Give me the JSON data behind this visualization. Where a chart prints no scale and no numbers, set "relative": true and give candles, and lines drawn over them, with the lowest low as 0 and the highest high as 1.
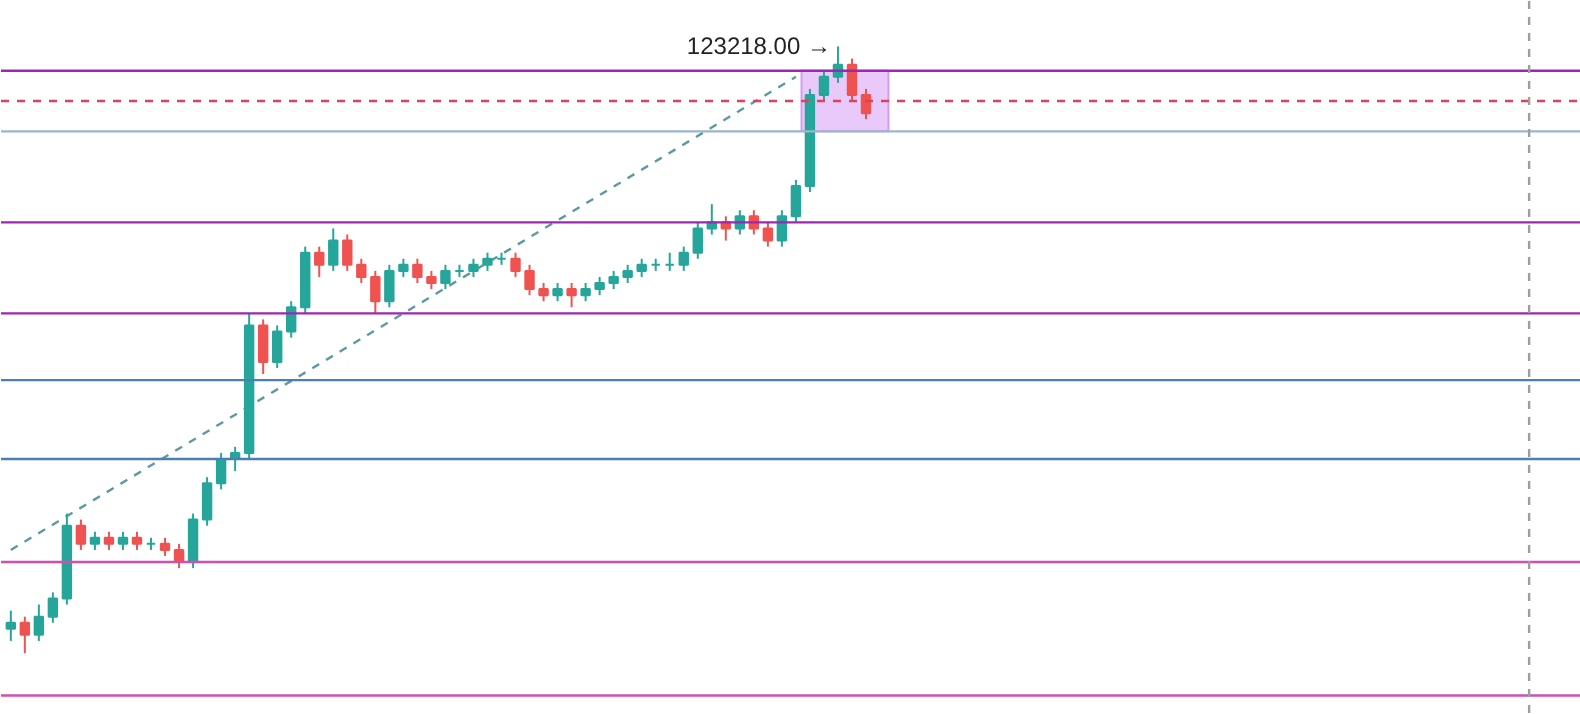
{
  "chart_data": {
    "type": "candlestick",
    "relative": true,
    "tick_labels": false,
    "grid": false,
    "categories": [
      null,
      null,
      null,
      null,
      null,
      null,
      null,
      null,
      null,
      null,
      null,
      null,
      null,
      null,
      null,
      null,
      null,
      null,
      null,
      null,
      null,
      null,
      null,
      null,
      null,
      null,
      null,
      null,
      null,
      null,
      null,
      null,
      null,
      null,
      null,
      null,
      null,
      null,
      null,
      null,
      null,
      null,
      null,
      null,
      null,
      null,
      null,
      null,
      null,
      null,
      null,
      null,
      null,
      null,
      null,
      null,
      null,
      null,
      null,
      null,
      null,
      null
    ],
    "colors": [
      "#26a69a",
      "#ef5350",
      "#26a69a",
      "#26a69a",
      "#26a69a",
      "#ef5350",
      "#26a69a",
      "#ef5350",
      "#26a69a",
      "#ef5350",
      "#26a69a",
      "#ef5350",
      "#ef5350",
      "#26a69a",
      "#26a69a",
      "#26a69a",
      "#26a69a",
      "#26a69a",
      "#ef5350",
      "#26a69a",
      "#26a69a",
      "#26a69a",
      "#ef5350",
      "#26a69a",
      "#ef5350",
      "#ef5350",
      "#ef5350",
      "#26a69a",
      "#26a69a",
      "#ef5350",
      "#ef5350",
      "#26a69a",
      "#26a69a",
      "#26a69a",
      "#26a69a",
      "#26a69a",
      "#ef5350",
      "#ef5350",
      "#ef5350",
      "#26a69a",
      "#ef5350",
      "#26a69a",
      "#26a69a",
      "#26a69a",
      "#26a69a",
      "#26a69a",
      "#26a69a",
      "#26a69a",
      "#26a69a",
      "#26a69a",
      "#26a69a",
      "#ef5350",
      "#26a69a",
      "#ef5350",
      "#ef5350",
      "#26a69a",
      "#26a69a",
      "#26a69a",
      "#26a69a",
      "#26a69a",
      "#ef5350",
      "#ef5350"
    ],
    "ohlc": [
      [
        0.04,
        0.07,
        0.02,
        0.05
      ],
      [
        0.05,
        0.06,
        0,
        0.03
      ],
      [
        0.03,
        0.08,
        0.02,
        0.06
      ],
      [
        0.06,
        0.1,
        0.05,
        0.09
      ],
      [
        0.09,
        0.23,
        0.08,
        0.21
      ],
      [
        0.21,
        0.22,
        0.17,
        0.18
      ],
      [
        0.18,
        0.2,
        0.17,
        0.19
      ],
      [
        0.19,
        0.2,
        0.17,
        0.18
      ],
      [
        0.18,
        0.2,
        0.17,
        0.19
      ],
      [
        0.19,
        0.2,
        0.17,
        0.18
      ],
      [
        0.18,
        0.19,
        0.17,
        0.18
      ],
      [
        0.18,
        0.19,
        0.16,
        0.17
      ],
      [
        0.17,
        0.18,
        0.14,
        0.15
      ],
      [
        0.15,
        0.23,
        0.14,
        0.22
      ],
      [
        0.22,
        0.29,
        0.21,
        0.28
      ],
      [
        0.28,
        0.33,
        0.27,
        0.32
      ],
      [
        0.32,
        0.34,
        0.3,
        0.33
      ],
      [
        0.33,
        0.56,
        0.32,
        0.54
      ],
      [
        0.54,
        0.55,
        0.46,
        0.48
      ],
      [
        0.48,
        0.54,
        0.47,
        0.53
      ],
      [
        0.53,
        0.58,
        0.52,
        0.57
      ],
      [
        0.57,
        0.67,
        0.56,
        0.66
      ],
      [
        0.66,
        0.67,
        0.62,
        0.64
      ],
      [
        0.64,
        0.7,
        0.63,
        0.68
      ],
      [
        0.68,
        0.69,
        0.63,
        0.64
      ],
      [
        0.64,
        0.65,
        0.61,
        0.62
      ],
      [
        0.62,
        0.63,
        0.56,
        0.58
      ],
      [
        0.58,
        0.64,
        0.57,
        0.63
      ],
      [
        0.63,
        0.65,
        0.62,
        0.64
      ],
      [
        0.64,
        0.65,
        0.61,
        0.62
      ],
      [
        0.62,
        0.63,
        0.6,
        0.61
      ],
      [
        0.61,
        0.64,
        0.6,
        0.63
      ],
      [
        0.63,
        0.64,
        0.62,
        0.63
      ],
      [
        0.63,
        0.65,
        0.62,
        0.64
      ],
      [
        0.64,
        0.66,
        0.63,
        0.65
      ],
      [
        0.65,
        0.66,
        0.64,
        0.65
      ],
      [
        0.65,
        0.66,
        0.62,
        0.63
      ],
      [
        0.63,
        0.64,
        0.59,
        0.6
      ],
      [
        0.6,
        0.61,
        0.58,
        0.59
      ],
      [
        0.59,
        0.61,
        0.58,
        0.6
      ],
      [
        0.6,
        0.61,
        0.57,
        0.59
      ],
      [
        0.59,
        0.61,
        0.58,
        0.6
      ],
      [
        0.6,
        0.62,
        0.59,
        0.61
      ],
      [
        0.61,
        0.63,
        0.6,
        0.62
      ],
      [
        0.62,
        0.64,
        0.61,
        0.63
      ],
      [
        0.63,
        0.65,
        0.62,
        0.64
      ],
      [
        0.64,
        0.65,
        0.63,
        0.64
      ],
      [
        0.64,
        0.66,
        0.63,
        0.64
      ],
      [
        0.64,
        0.67,
        0.63,
        0.66
      ],
      [
        0.66,
        0.71,
        0.65,
        0.7
      ],
      [
        0.7,
        0.74,
        0.69,
        0.71
      ],
      [
        0.71,
        0.72,
        0.68,
        0.7
      ],
      [
        0.7,
        0.73,
        0.69,
        0.72
      ],
      [
        0.72,
        0.73,
        0.69,
        0.7
      ],
      [
        0.7,
        0.71,
        0.67,
        0.68
      ],
      [
        0.68,
        0.73,
        0.67,
        0.72
      ],
      [
        0.72,
        0.78,
        0.71,
        0.77
      ],
      [
        0.77,
        0.93,
        0.76,
        0.92
      ],
      [
        0.92,
        0.96,
        0.91,
        0.95
      ],
      [
        0.95,
        1,
        0.94,
        0.97
      ],
      [
        0.97,
        0.98,
        0.91,
        0.92
      ],
      [
        0.92,
        0.93,
        0.88,
        0.89
      ]
    ],
    "series": [
      {
        "type": "line",
        "values": [
          0.17,
          null,
          null,
          null,
          null,
          null,
          null,
          null,
          null,
          null,
          null,
          null,
          null,
          null,
          null,
          null,
          null,
          null,
          null,
          null,
          null,
          null,
          null,
          null,
          null,
          null,
          null,
          null,
          null,
          null,
          null,
          null,
          null,
          null,
          null,
          null,
          null,
          null,
          null,
          null,
          null,
          null,
          null,
          null,
          null,
          null,
          null,
          null,
          null,
          null,
          null,
          null,
          null,
          null,
          null,
          null,
          0.95,
          null,
          null,
          null,
          null,
          null
        ],
        "color": "#5c9aa0",
        "line_style": "dashed"
      }
    ],
    "ref_lines": [
      {
        "axis": "y",
        "value": 0.96,
        "color": "#9c27b0"
      },
      {
        "axis": "y",
        "value": 0.91,
        "color": "#e0405a",
        "line_style": "dashed"
      },
      {
        "axis": "y",
        "value": 0.86,
        "color": "#9db4cf"
      },
      {
        "axis": "y",
        "value": 0.71,
        "color": "#9c27b0"
      },
      {
        "axis": "y",
        "value": 0.56,
        "color": "#9c27b0"
      },
      {
        "axis": "y",
        "value": 0.45,
        "color": "#4a7fb5"
      },
      {
        "axis": "y",
        "value": 0.32,
        "color": "#4a7fb5"
      },
      {
        "axis": "y",
        "value": 0.15,
        "color": "#d04fb0"
      },
      {
        "axis": "y",
        "value": -0.07,
        "color": "#d04fb0"
      }
    ],
    "bands": [
      {
        "axis": "y",
        "from": 0.86,
        "to": 0.96,
        "color": "#d59cf5"
      }
    ],
    "annotations": [
      "123218.00 →"
    ]
  }
}
